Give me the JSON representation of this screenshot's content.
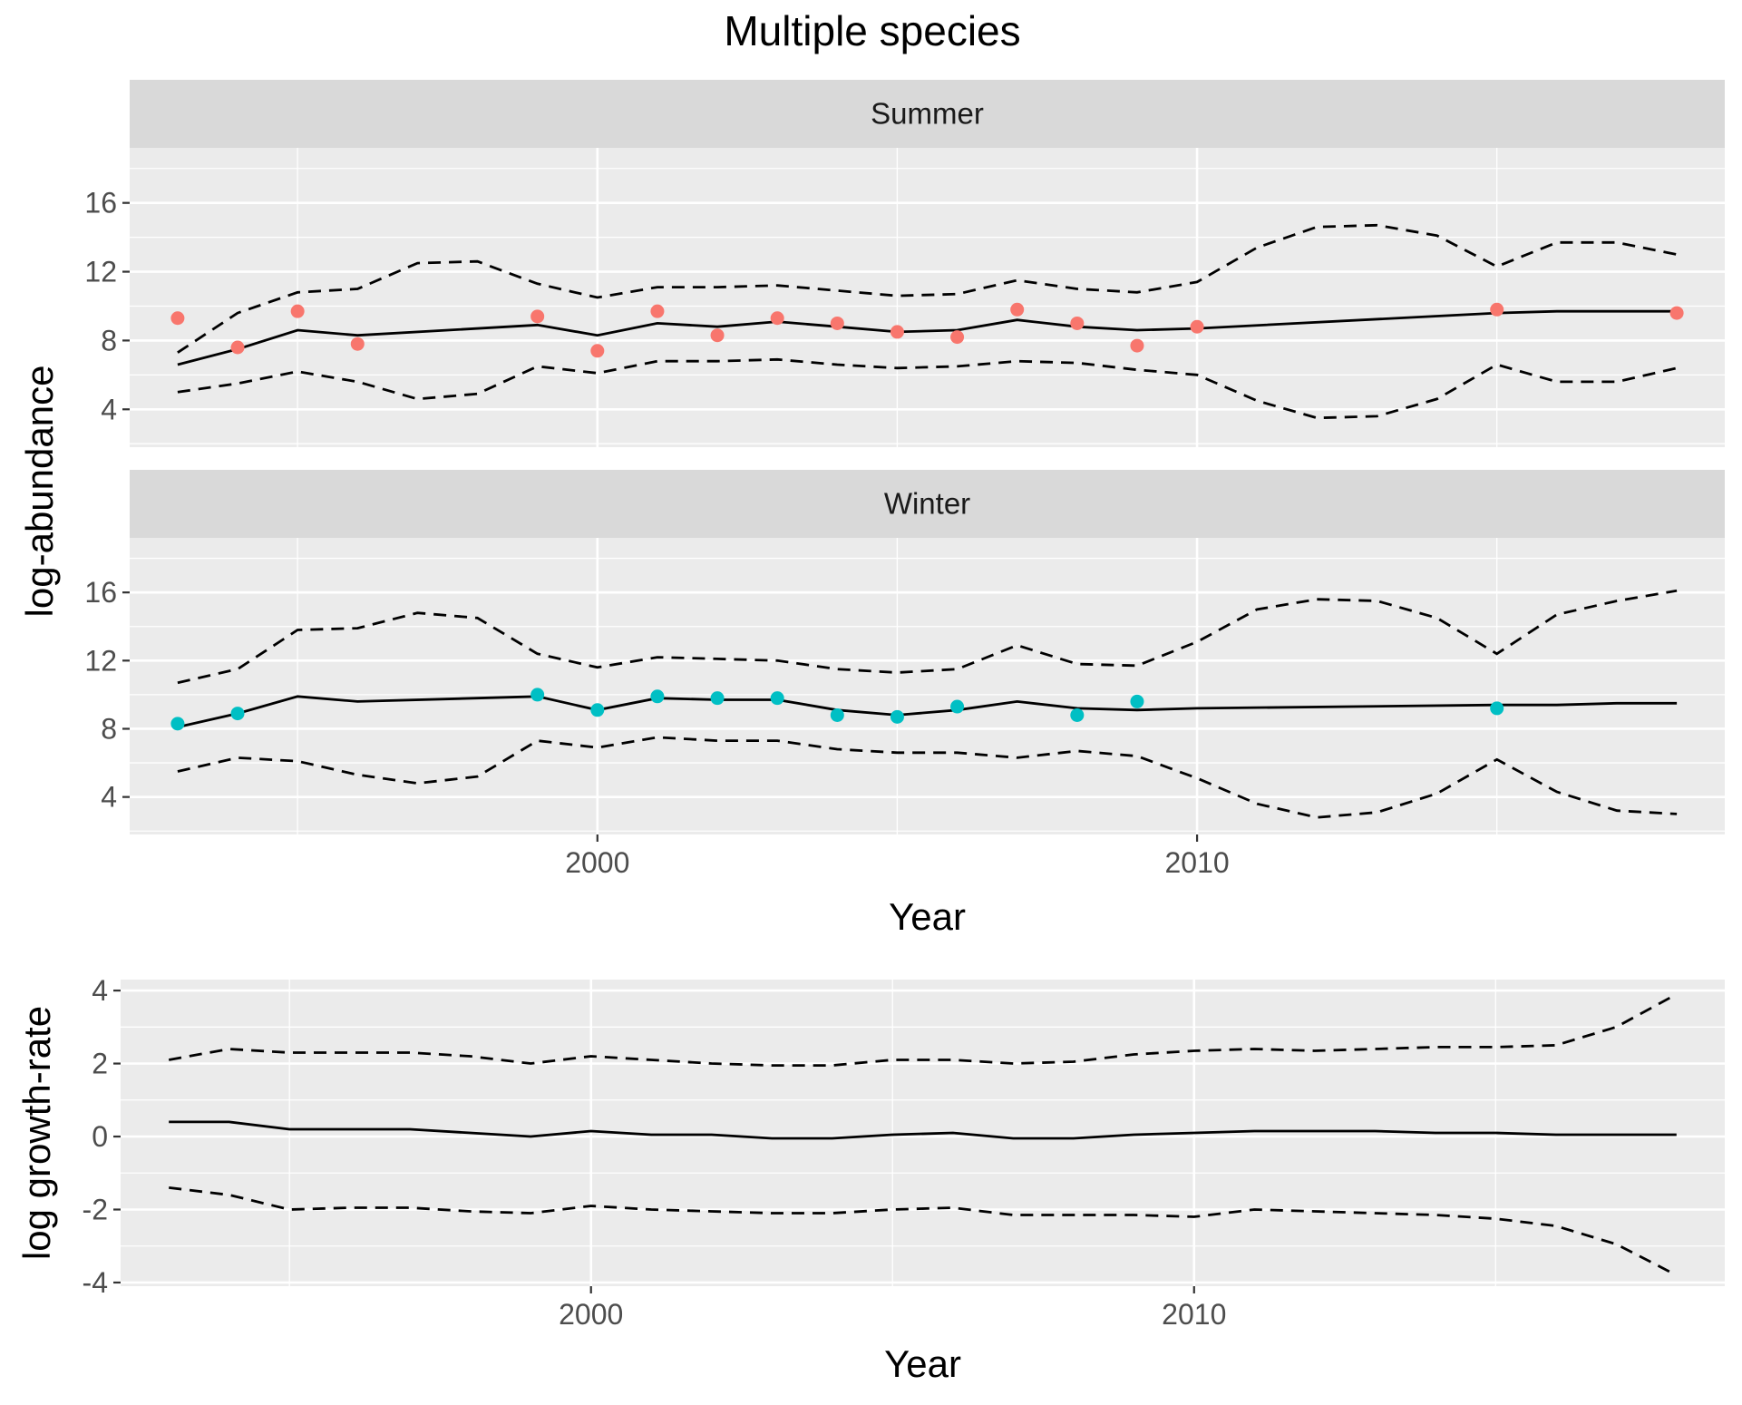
{
  "chart_data": {
    "title": "Multiple species",
    "colors": {
      "Summer": "#F8766D",
      "Winter": "#00BFC4",
      "line": "#000000"
    },
    "charts": [
      {
        "type": "line",
        "facets": [
          "Summer",
          "Winter"
        ],
        "xlabel": "Year",
        "ylabel": "log-abundance",
        "xlim": [
          1992.2,
          2018.8
        ],
        "ylim": [
          1.8,
          19.2
        ],
        "xticks": [
          2000,
          2010
        ],
        "yticks": [
          4,
          8,
          12,
          16
        ],
        "panels": [
          {
            "name": "Summer",
            "estimate": [
              [
                1993,
                6.6
              ],
              [
                1994,
                7.5
              ],
              [
                1995,
                8.6
              ],
              [
                1996,
                8.3
              ],
              [
                1999,
                8.9
              ],
              [
                2000,
                8.3
              ],
              [
                2001,
                9.0
              ],
              [
                2002,
                8.8
              ],
              [
                2003,
                9.1
              ],
              [
                2004,
                8.8
              ],
              [
                2005,
                8.5
              ],
              [
                2006,
                8.6
              ],
              [
                2007,
                9.2
              ],
              [
                2008,
                8.8
              ],
              [
                2009,
                8.6
              ],
              [
                2010,
                8.7
              ],
              [
                2015,
                9.6
              ],
              [
                2016,
                9.7
              ],
              [
                2017,
                9.7
              ],
              [
                2018,
                9.7
              ]
            ],
            "upper": [
              [
                1993,
                7.3
              ],
              [
                1994,
                9.6
              ],
              [
                1995,
                10.8
              ],
              [
                1996,
                11.0
              ],
              [
                1997,
                12.5
              ],
              [
                1998,
                12.6
              ],
              [
                1999,
                11.3
              ],
              [
                2000,
                10.5
              ],
              [
                2001,
                11.1
              ],
              [
                2002,
                11.1
              ],
              [
                2003,
                11.2
              ],
              [
                2004,
                10.9
              ],
              [
                2005,
                10.6
              ],
              [
                2006,
                10.7
              ],
              [
                2007,
                11.5
              ],
              [
                2008,
                11.0
              ],
              [
                2009,
                10.8
              ],
              [
                2010,
                11.4
              ],
              [
                2011,
                13.4
              ],
              [
                2012,
                14.6
              ],
              [
                2013,
                14.7
              ],
              [
                2014,
                14.1
              ],
              [
                2015,
                12.3
              ],
              [
                2016,
                13.7
              ],
              [
                2017,
                13.7
              ],
              [
                2018,
                13.0
              ]
            ],
            "lower": [
              [
                1993,
                5.0
              ],
              [
                1994,
                5.5
              ],
              [
                1995,
                6.2
              ],
              [
                1996,
                5.6
              ],
              [
                1997,
                4.6
              ],
              [
                1998,
                4.9
              ],
              [
                1999,
                6.5
              ],
              [
                2000,
                6.1
              ],
              [
                2001,
                6.8
              ],
              [
                2002,
                6.8
              ],
              [
                2003,
                6.9
              ],
              [
                2004,
                6.6
              ],
              [
                2005,
                6.4
              ],
              [
                2006,
                6.5
              ],
              [
                2007,
                6.8
              ],
              [
                2008,
                6.7
              ],
              [
                2009,
                6.3
              ],
              [
                2010,
                6.0
              ],
              [
                2011,
                4.5
              ],
              [
                2012,
                3.5
              ],
              [
                2013,
                3.6
              ],
              [
                2014,
                4.6
              ],
              [
                2015,
                6.6
              ],
              [
                2016,
                5.6
              ],
              [
                2017,
                5.6
              ],
              [
                2018,
                6.4
              ]
            ],
            "observed": [
              [
                1993,
                9.3
              ],
              [
                1994,
                7.6
              ],
              [
                1995,
                9.7
              ],
              [
                1996,
                7.8
              ],
              [
                1999,
                9.4
              ],
              [
                2000,
                7.4
              ],
              [
                2001,
                9.7
              ],
              [
                2002,
                8.3
              ],
              [
                2003,
                9.3
              ],
              [
                2004,
                9.0
              ],
              [
                2005,
                8.5
              ],
              [
                2006,
                8.2
              ],
              [
                2007,
                9.8
              ],
              [
                2008,
                9.0
              ],
              [
                2009,
                7.7
              ],
              [
                2010,
                8.8
              ],
              [
                2015,
                9.8
              ],
              [
                2018,
                9.6
              ]
            ]
          },
          {
            "name": "Winter",
            "estimate": [
              [
                1993,
                8.1
              ],
              [
                1994,
                8.9
              ],
              [
                1995,
                9.9
              ],
              [
                1996,
                9.6
              ],
              [
                1999,
                9.9
              ],
              [
                2000,
                9.1
              ],
              [
                2001,
                9.8
              ],
              [
                2002,
                9.7
              ],
              [
                2003,
                9.7
              ],
              [
                2004,
                9.1
              ],
              [
                2005,
                8.8
              ],
              [
                2006,
                9.1
              ],
              [
                2007,
                9.6
              ],
              [
                2008,
                9.2
              ],
              [
                2009,
                9.1
              ],
              [
                2010,
                9.2
              ],
              [
                2015,
                9.4
              ],
              [
                2016,
                9.4
              ],
              [
                2017,
                9.5
              ],
              [
                2018,
                9.5
              ]
            ],
            "upper": [
              [
                1993,
                10.7
              ],
              [
                1994,
                11.5
              ],
              [
                1995,
                13.8
              ],
              [
                1996,
                13.9
              ],
              [
                1997,
                14.8
              ],
              [
                1998,
                14.5
              ],
              [
                1999,
                12.4
              ],
              [
                2000,
                11.6
              ],
              [
                2001,
                12.2
              ],
              [
                2002,
                12.1
              ],
              [
                2003,
                12.0
              ],
              [
                2004,
                11.5
              ],
              [
                2005,
                11.3
              ],
              [
                2006,
                11.5
              ],
              [
                2007,
                12.9
              ],
              [
                2008,
                11.8
              ],
              [
                2009,
                11.7
              ],
              [
                2010,
                13.1
              ],
              [
                2011,
                15.0
              ],
              [
                2012,
                15.6
              ],
              [
                2013,
                15.5
              ],
              [
                2014,
                14.5
              ],
              [
                2015,
                12.4
              ],
              [
                2016,
                14.7
              ],
              [
                2017,
                15.5
              ],
              [
                2018,
                16.1
              ]
            ],
            "lower": [
              [
                1993,
                5.5
              ],
              [
                1994,
                6.3
              ],
              [
                1995,
                6.1
              ],
              [
                1996,
                5.3
              ],
              [
                1997,
                4.8
              ],
              [
                1998,
                5.2
              ],
              [
                1999,
                7.3
              ],
              [
                2000,
                6.9
              ],
              [
                2001,
                7.5
              ],
              [
                2002,
                7.3
              ],
              [
                2003,
                7.3
              ],
              [
                2004,
                6.8
              ],
              [
                2005,
                6.6
              ],
              [
                2006,
                6.6
              ],
              [
                2007,
                6.3
              ],
              [
                2008,
                6.7
              ],
              [
                2009,
                6.4
              ],
              [
                2010,
                5.1
              ],
              [
                2011,
                3.6
              ],
              [
                2012,
                2.8
              ],
              [
                2013,
                3.1
              ],
              [
                2014,
                4.2
              ],
              [
                2015,
                6.2
              ],
              [
                2016,
                4.3
              ],
              [
                2017,
                3.2
              ],
              [
                2018,
                3.0
              ]
            ],
            "observed": [
              [
                1993,
                8.3
              ],
              [
                1994,
                8.9
              ],
              [
                1999,
                10.0
              ],
              [
                2000,
                9.1
              ],
              [
                2001,
                9.9
              ],
              [
                2002,
                9.8
              ],
              [
                2003,
                9.8
              ],
              [
                2004,
                8.8
              ],
              [
                2005,
                8.7
              ],
              [
                2006,
                9.3
              ],
              [
                2008,
                8.8
              ],
              [
                2009,
                9.6
              ],
              [
                2015,
                9.2
              ]
            ]
          }
        ]
      },
      {
        "type": "line",
        "xlabel": "Year",
        "ylabel": "log growth-rate",
        "xlim": [
          1992.2,
          2018.8
        ],
        "ylim": [
          -4.1,
          4.3
        ],
        "xticks": [
          2000,
          2010
        ],
        "yticks": [
          -4,
          -2,
          0,
          2,
          4
        ],
        "estimate": [
          [
            1993,
            0.4
          ],
          [
            1994,
            0.4
          ],
          [
            1995,
            0.2
          ],
          [
            1996,
            0.2
          ],
          [
            1997,
            0.2
          ],
          [
            1998,
            0.1
          ],
          [
            1999,
            0.0
          ],
          [
            2000,
            0.15
          ],
          [
            2001,
            0.05
          ],
          [
            2002,
            0.05
          ],
          [
            2003,
            -0.05
          ],
          [
            2004,
            -0.05
          ],
          [
            2005,
            0.05
          ],
          [
            2006,
            0.1
          ],
          [
            2007,
            -0.05
          ],
          [
            2008,
            -0.05
          ],
          [
            2009,
            0.05
          ],
          [
            2010,
            0.1
          ],
          [
            2011,
            0.15
          ],
          [
            2012,
            0.15
          ],
          [
            2013,
            0.15
          ],
          [
            2014,
            0.1
          ],
          [
            2015,
            0.1
          ],
          [
            2016,
            0.05
          ],
          [
            2017,
            0.05
          ],
          [
            2018,
            0.05
          ]
        ],
        "upper": [
          [
            1993,
            2.1
          ],
          [
            1994,
            2.4
          ],
          [
            1995,
            2.3
          ],
          [
            1996,
            2.3
          ],
          [
            1997,
            2.3
          ],
          [
            1998,
            2.2
          ],
          [
            1999,
            2.0
          ],
          [
            2000,
            2.2
          ],
          [
            2001,
            2.1
          ],
          [
            2002,
            2.0
          ],
          [
            2003,
            1.95
          ],
          [
            2004,
            1.95
          ],
          [
            2005,
            2.1
          ],
          [
            2006,
            2.1
          ],
          [
            2007,
            2.0
          ],
          [
            2008,
            2.05
          ],
          [
            2009,
            2.25
          ],
          [
            2010,
            2.35
          ],
          [
            2011,
            2.4
          ],
          [
            2012,
            2.35
          ],
          [
            2013,
            2.4
          ],
          [
            2014,
            2.45
          ],
          [
            2015,
            2.45
          ],
          [
            2016,
            2.5
          ],
          [
            2017,
            3.0
          ],
          [
            2018,
            3.9
          ]
        ],
        "lower": [
          [
            1993,
            -1.4
          ],
          [
            1994,
            -1.6
          ],
          [
            1995,
            -2.0
          ],
          [
            1996,
            -1.95
          ],
          [
            1997,
            -1.95
          ],
          [
            1998,
            -2.05
          ],
          [
            1999,
            -2.1
          ],
          [
            2000,
            -1.9
          ],
          [
            2001,
            -2.0
          ],
          [
            2002,
            -2.05
          ],
          [
            2003,
            -2.1
          ],
          [
            2004,
            -2.1
          ],
          [
            2005,
            -2.0
          ],
          [
            2006,
            -1.95
          ],
          [
            2007,
            -2.15
          ],
          [
            2008,
            -2.15
          ],
          [
            2009,
            -2.15
          ],
          [
            2010,
            -2.2
          ],
          [
            2011,
            -2.0
          ],
          [
            2012,
            -2.05
          ],
          [
            2013,
            -2.1
          ],
          [
            2014,
            -2.15
          ],
          [
            2015,
            -2.25
          ],
          [
            2016,
            -2.45
          ],
          [
            2017,
            -2.95
          ],
          [
            2018,
            -3.8
          ]
        ]
      }
    ]
  }
}
